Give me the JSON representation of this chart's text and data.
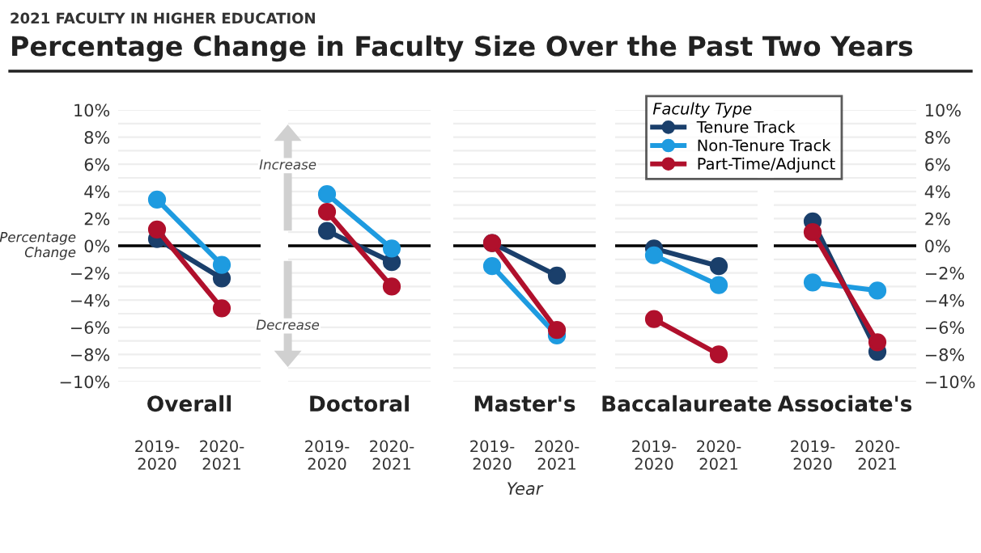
{
  "chart_data": [
    {
      "type": "other",
      "title": "Percentage Change in Faculty Size Over the Past Two Years",
      "subtitle": "2021 FACULTY IN HIGHER EDUCATION"
    },
    {
      "type": "line",
      "title": "Overall",
      "ylabel": "Percentage\nChange",
      "annotations": [
        "Increase",
        "Decrease"
      ],
      "categories": [
        "2019-\n2020",
        "2020-\n2021"
      ],
      "marker": "circle",
      "grid": "y",
      "legend": false,
      "tick_labels": "xy",
      "ylim": [
        -10,
        10
      ],
      "yticks": [
        {
          "value": 10,
          "label": "10%"
        },
        {
          "value": 8,
          "label": "8%"
        },
        {
          "value": 6,
          "label": "6%"
        },
        {
          "value": 4,
          "label": "4%"
        },
        {
          "value": 2,
          "label": "2%"
        },
        {
          "value": 0,
          "label": "0%"
        },
        {
          "value": -2,
          "label": "−2%"
        },
        {
          "value": -4,
          "label": "−4%"
        },
        {
          "value": -6,
          "label": "−6%"
        },
        {
          "value": -8,
          "label": "−8%"
        },
        {
          "value": -10,
          "label": "−10%"
        }
      ],
      "ref_lines": [
        {
          "axis": "y",
          "value": 0,
          "color": "#000000"
        }
      ],
      "series": [
        {
          "color": "#1a3f6b",
          "values": [
            0.5,
            -2.4
          ]
        },
        {
          "color": "#1e9be0",
          "values": [
            3.4,
            -1.4
          ]
        },
        {
          "color": "#b0102c",
          "values": [
            1.2,
            -4.6
          ]
        }
      ]
    },
    {
      "type": "line",
      "title": "Doctoral",
      "categories": [
        "2019-\n2020",
        "2020-\n2021"
      ],
      "marker": "circle",
      "grid": "y",
      "legend": false,
      "tick_labels": "x",
      "ylim": [
        -10,
        10
      ],
      "ref_lines": [
        {
          "axis": "y",
          "value": 0,
          "color": "#000000"
        }
      ],
      "series": [
        {
          "color": "#1a3f6b",
          "values": [
            1.1,
            -1.2
          ]
        },
        {
          "color": "#1e9be0",
          "values": [
            3.8,
            -0.2
          ]
        },
        {
          "color": "#b0102c",
          "values": [
            2.5,
            -3.0
          ]
        }
      ]
    },
    {
      "type": "line",
      "title": "Master's",
      "xlabel": "Year",
      "categories": [
        "2019-\n2020",
        "2020-\n2021"
      ],
      "marker": "circle",
      "grid": "y",
      "legend": false,
      "tick_labels": "x",
      "ylim": [
        -10,
        10
      ],
      "ref_lines": [
        {
          "axis": "y",
          "value": 0,
          "color": "#000000"
        }
      ],
      "series": [
        {
          "color": "#1a3f6b",
          "values": [
            0.2,
            -2.2
          ]
        },
        {
          "color": "#1e9be0",
          "values": [
            -1.5,
            -6.6
          ]
        },
        {
          "color": "#b0102c",
          "values": [
            0.2,
            -6.2
          ]
        }
      ]
    },
    {
      "type": "line",
      "title": "Baccalaureate",
      "categories": [
        "2019-\n2020",
        "2020-\n2021"
      ],
      "marker": "circle",
      "grid": "y",
      "legend": false,
      "tick_labels": "x",
      "ylim": [
        -10,
        10
      ],
      "ref_lines": [
        {
          "axis": "y",
          "value": 0,
          "color": "#000000"
        }
      ],
      "series": [
        {
          "color": "#1a3f6b",
          "values": [
            -0.2,
            -1.5
          ]
        },
        {
          "color": "#1e9be0",
          "values": [
            -0.7,
            -2.9
          ]
        },
        {
          "color": "#b0102c",
          "values": [
            -5.4,
            -8.0
          ]
        }
      ]
    },
    {
      "type": "line",
      "title": "Associate's",
      "legend_title": "Faculty Type",
      "categories": [
        "2019-\n2020",
        "2020-\n2021"
      ],
      "marker": "circle",
      "grid": "y",
      "legend": "top left",
      "tick_labels": "xy",
      "ylim": [
        -10,
        10
      ],
      "yticks": [
        {
          "value": 10,
          "label": "10%"
        },
        {
          "value": 8,
          "label": "8%"
        },
        {
          "value": 6,
          "label": "6%"
        },
        {
          "value": 4,
          "label": "4%"
        },
        {
          "value": 2,
          "label": "2%"
        },
        {
          "value": 0,
          "label": "0%"
        },
        {
          "value": -2,
          "label": "−2%"
        },
        {
          "value": -4,
          "label": "−4%"
        },
        {
          "value": -6,
          "label": "−6%"
        },
        {
          "value": -8,
          "label": "−8%"
        },
        {
          "value": -10,
          "label": "−10%"
        }
      ],
      "ref_lines": [
        {
          "axis": "y",
          "value": 0,
          "color": "#000000"
        }
      ],
      "series": [
        {
          "name": "Tenure Track",
          "color": "#1a3f6b",
          "values": [
            1.8,
            -7.8
          ]
        },
        {
          "name": "Non-Tenure Track",
          "color": "#1e9be0",
          "values": [
            -2.7,
            -3.3
          ]
        },
        {
          "name": "Part-Time/Adjunct",
          "color": "#b0102c",
          "values": [
            1.0,
            -7.1
          ]
        }
      ]
    }
  ]
}
